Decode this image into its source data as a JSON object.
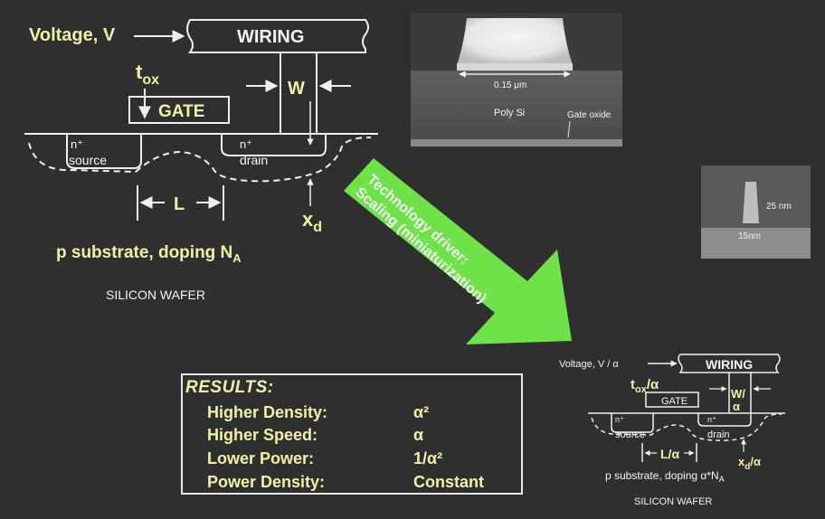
{
  "big_device": {
    "voltage_label": "Voltage, V",
    "wiring_label": "WIRING",
    "tox_label": "t",
    "tox_sub": "ox",
    "gate_label": "GATE",
    "w_label": "W",
    "source_n": "n⁺",
    "source_label": "source",
    "drain_n": "n⁺",
    "drain_label": "drain",
    "l_label": "L",
    "xd_label": "x",
    "xd_sub": "d",
    "substrate_label": "p substrate, doping  N",
    "substrate_sub": "A",
    "wafer_label": "SILICON WAFER"
  },
  "micrograph_large": {
    "scale_label": "0.15 μm",
    "poly_label": "Poly Si",
    "oxide_label": "Gate oxide"
  },
  "micrograph_small": {
    "label_25": "25 nm",
    "label_15": "15nm"
  },
  "arrow": {
    "line1": "Technology driver:",
    "line2": "Scaling (miniaturization)"
  },
  "small_device": {
    "voltage_label": "Voltage, V / α",
    "wiring_label": "WIRING",
    "tox_label": "t",
    "tox_sub": "ox",
    "tox_suffix": "/α",
    "gate_label": "GATE",
    "w_label": "W/",
    "w_suffix": "α",
    "source_n": "n⁺",
    "source_label": "source",
    "drain_n": "n⁺",
    "drain_label": "drain",
    "l_label": "L/α",
    "xd_label": "x",
    "xd_sub": "d",
    "xd_suffix": "/α",
    "substrate_label": "p substrate, doping  α*N",
    "substrate_sub": "A",
    "wafer_label": "SILICON WAFER"
  },
  "results": {
    "title": "RESULTS:",
    "rows": [
      {
        "label": "Higher Density:",
        "value": "α²"
      },
      {
        "label": "Higher Speed:",
        "value": "α"
      },
      {
        "label": "Lower Power:",
        "value": "1/α²"
      },
      {
        "label": "Power Density:",
        "value": "Constant"
      }
    ]
  },
  "colors": {
    "background": "#2f2f2f",
    "label_yellow": "#f3f0a6",
    "line_white": "#f0f0f0",
    "arrow_green": "#6fe24a"
  }
}
